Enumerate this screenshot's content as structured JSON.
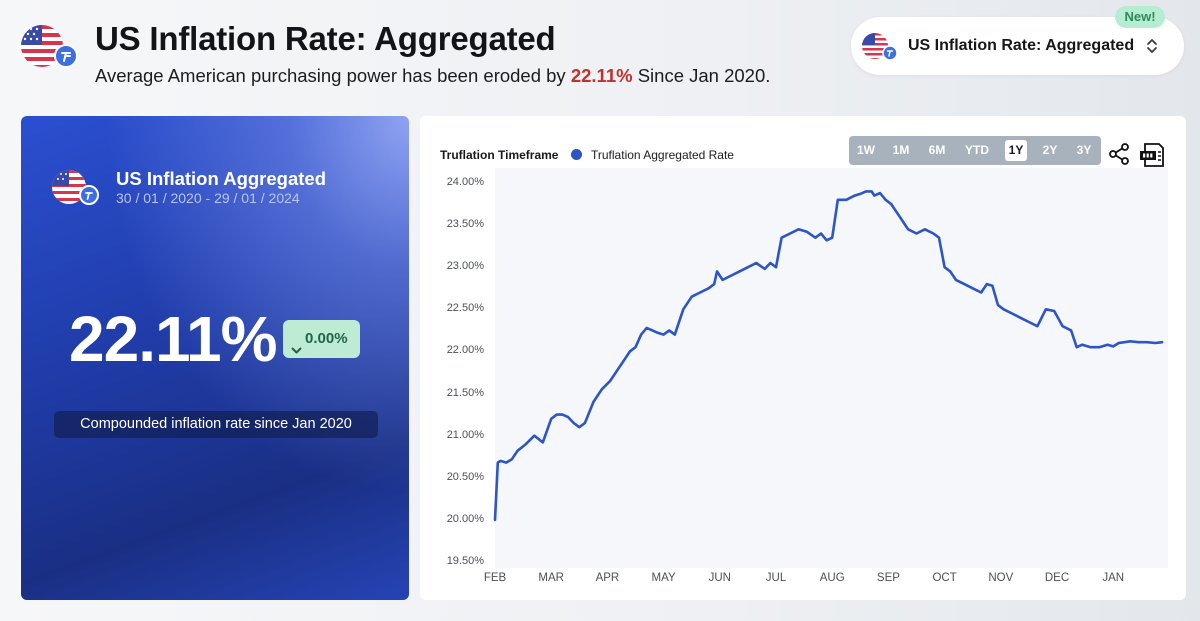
{
  "header": {
    "title": "US Inflation Rate: Aggregated",
    "subtitle_prefix": "Average American purchasing power has been eroded by",
    "subtitle_value": "22.11%",
    "subtitle_suffix": "Since Jan 2020.",
    "flag_icon": "us-flag-icon"
  },
  "selector": {
    "label": "US Inflation Rate: Aggregated",
    "badge": "New!",
    "icon": "chevron-updown-icon"
  },
  "summary_card": {
    "title": "US Inflation Aggregated",
    "date_range": "30 / 01 / 2020 - 29 / 01 / 2024",
    "value": "22.11%",
    "change": "0.00%",
    "change_icon": "chevron-down-icon",
    "caption": "Compounded inflation rate since Jan 2020"
  },
  "chart_panel": {
    "timeframe_label": "Truflation Timeframe",
    "ranges": [
      "1W",
      "1M",
      "6M",
      "YTD",
      "1Y",
      "2Y",
      "3Y"
    ],
    "active_range": "1Y",
    "share_icon": "share-icon",
    "csv_icon": "csv-download-icon"
  },
  "colors": {
    "accent_line": "#2d55c5",
    "highlight_red": "#c4302b",
    "badge_green_bg": "#b6ecd1",
    "badge_green_text": "#2e8a5a"
  },
  "chart_data": {
    "type": "line",
    "title": "",
    "xlabel": "",
    "ylabel": "",
    "legend": "top-left",
    "grid": false,
    "ylim": [
      19.5,
      24.0
    ],
    "yticks": [
      "24.00%",
      "23.50%",
      "23.00%",
      "22.50%",
      "22.00%",
      "21.50%",
      "21.00%",
      "20.50%",
      "20.00%",
      "19.50%"
    ],
    "xticks": [
      "FEB",
      "MAR",
      "APR",
      "MAY",
      "JUN",
      "JUL",
      "AUG",
      "SEP",
      "OCT",
      "NOV",
      "DEC",
      "JAN"
    ],
    "x_months_start": "FEB",
    "series": [
      {
        "name": "Truflation Aggregated Rate",
        "x": [
          0.0,
          0.05,
          0.1,
          0.2,
          0.3,
          0.4,
          0.55,
          0.7,
          0.85,
          1.0,
          1.1,
          1.2,
          1.3,
          1.4,
          1.5,
          1.6,
          1.75,
          1.9,
          2.05,
          2.2,
          2.3,
          2.4,
          2.5,
          2.6,
          2.7,
          2.8,
          2.9,
          3.0,
          3.1,
          3.2,
          3.35,
          3.5,
          3.65,
          3.8,
          3.9,
          3.95,
          4.05,
          4.2,
          4.35,
          4.5,
          4.65,
          4.8,
          4.9,
          5.0,
          5.1,
          5.25,
          5.4,
          5.55,
          5.7,
          5.8,
          5.9,
          6.0,
          6.1,
          6.25,
          6.4,
          6.5,
          6.6,
          6.7,
          6.75,
          6.85,
          6.95,
          7.05,
          7.2,
          7.3,
          7.35,
          7.5,
          7.65,
          7.8,
          7.9,
          8.0,
          8.1,
          8.2,
          8.35,
          8.5,
          8.65,
          8.75,
          8.85,
          8.95,
          9.05,
          9.2,
          9.35,
          9.5,
          9.65,
          9.8,
          9.95,
          10.1,
          10.25,
          10.35,
          10.45,
          10.6,
          10.75,
          10.9,
          11.0,
          11.1,
          11.2,
          11.3,
          11.45,
          11.6,
          11.75,
          11.87
        ],
        "values": [
          20.0,
          20.68,
          20.7,
          20.68,
          20.72,
          20.82,
          20.9,
          21.0,
          20.92,
          21.2,
          21.25,
          21.25,
          21.22,
          21.15,
          21.1,
          21.15,
          21.4,
          21.55,
          21.65,
          21.8,
          21.9,
          22.0,
          22.05,
          22.2,
          22.28,
          22.25,
          22.22,
          22.2,
          22.25,
          22.2,
          22.5,
          22.65,
          22.7,
          22.75,
          22.8,
          22.95,
          22.85,
          22.9,
          22.95,
          23.0,
          23.05,
          22.98,
          23.05,
          23.0,
          23.35,
          23.4,
          23.45,
          23.42,
          23.35,
          23.4,
          23.32,
          23.35,
          23.8,
          23.8,
          23.85,
          23.87,
          23.9,
          23.9,
          23.85,
          23.88,
          23.8,
          23.75,
          23.6,
          23.5,
          23.45,
          23.4,
          23.45,
          23.4,
          23.35,
          23.0,
          22.95,
          22.85,
          22.8,
          22.75,
          22.7,
          22.8,
          22.78,
          22.55,
          22.5,
          22.45,
          22.4,
          22.35,
          22.3,
          22.5,
          22.48,
          22.3,
          22.25,
          22.05,
          22.08,
          22.05,
          22.05,
          22.08,
          22.06,
          22.1,
          22.11,
          22.12,
          22.11,
          22.11,
          22.1,
          22.11
        ]
      }
    ]
  }
}
